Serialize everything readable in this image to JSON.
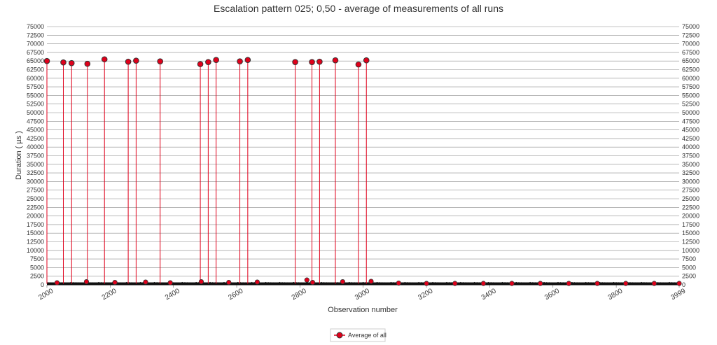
{
  "chart_data": {
    "type": "line",
    "title": "Escalation pattern 025; 0,50 - average of measurements of all runs",
    "xlabel": "Observation number",
    "ylabel": "Duration ( µs )",
    "xlim": [
      2000,
      3999
    ],
    "ylim": [
      0,
      75000
    ],
    "x_ticks": [
      "2000",
      "2200",
      "2400",
      "2600",
      "2800",
      "3000",
      "3200",
      "3400",
      "3600",
      "3800",
      "3999"
    ],
    "y_ticks": [
      "0",
      "2500",
      "5000",
      "7500",
      "10000",
      "12500",
      "15000",
      "17500",
      "20000",
      "22500",
      "25000",
      "27500",
      "30000",
      "32500",
      "35000",
      "37500",
      "40000",
      "42500",
      "45000",
      "47500",
      "50000",
      "52500",
      "55000",
      "57500",
      "60000",
      "62500",
      "65000",
      "67500",
      "70000",
      "72500",
      "75000"
    ],
    "grid": true,
    "legend_position": "bottom-center",
    "baseline": 300,
    "series": [
      {
        "name": "Average of all",
        "color": "#e0001b",
        "marker_stroke": "#333333",
        "peaks": [
          {
            "x": 2000,
            "y": 65000
          },
          {
            "x": 2052,
            "y": 64600
          },
          {
            "x": 2078,
            "y": 64400
          },
          {
            "x": 2128,
            "y": 64200
          },
          {
            "x": 2182,
            "y": 65500
          },
          {
            "x": 2257,
            "y": 64800
          },
          {
            "x": 2282,
            "y": 65100
          },
          {
            "x": 2358,
            "y": 64900
          },
          {
            "x": 2485,
            "y": 64100
          },
          {
            "x": 2510,
            "y": 64700
          },
          {
            "x": 2535,
            "y": 65300
          },
          {
            "x": 2610,
            "y": 64900
          },
          {
            "x": 2635,
            "y": 65300
          },
          {
            "x": 2785,
            "y": 64700
          },
          {
            "x": 2838,
            "y": 64700
          },
          {
            "x": 2862,
            "y": 64800
          },
          {
            "x": 2912,
            "y": 65200
          },
          {
            "x": 2985,
            "y": 64000
          },
          {
            "x": 3010,
            "y": 65200
          }
        ],
        "small_markers": [
          {
            "x": 2032,
            "y": 600
          },
          {
            "x": 2125,
            "y": 900
          },
          {
            "x": 2215,
            "y": 700
          },
          {
            "x": 2312,
            "y": 800
          },
          {
            "x": 2390,
            "y": 600
          },
          {
            "x": 2488,
            "y": 900
          },
          {
            "x": 2575,
            "y": 700
          },
          {
            "x": 2665,
            "y": 800
          },
          {
            "x": 2822,
            "y": 1400
          },
          {
            "x": 2840,
            "y": 700
          },
          {
            "x": 2935,
            "y": 900
          },
          {
            "x": 3025,
            "y": 1000
          },
          {
            "x": 3112,
            "y": 500
          },
          {
            "x": 3200,
            "y": 400
          },
          {
            "x": 3290,
            "y": 400
          },
          {
            "x": 3380,
            "y": 400
          },
          {
            "x": 3470,
            "y": 400
          },
          {
            "x": 3560,
            "y": 400
          },
          {
            "x": 3650,
            "y": 400
          },
          {
            "x": 3740,
            "y": 400
          },
          {
            "x": 3830,
            "y": 400
          },
          {
            "x": 3920,
            "y": 400
          },
          {
            "x": 3999,
            "y": 400
          }
        ]
      }
    ]
  }
}
